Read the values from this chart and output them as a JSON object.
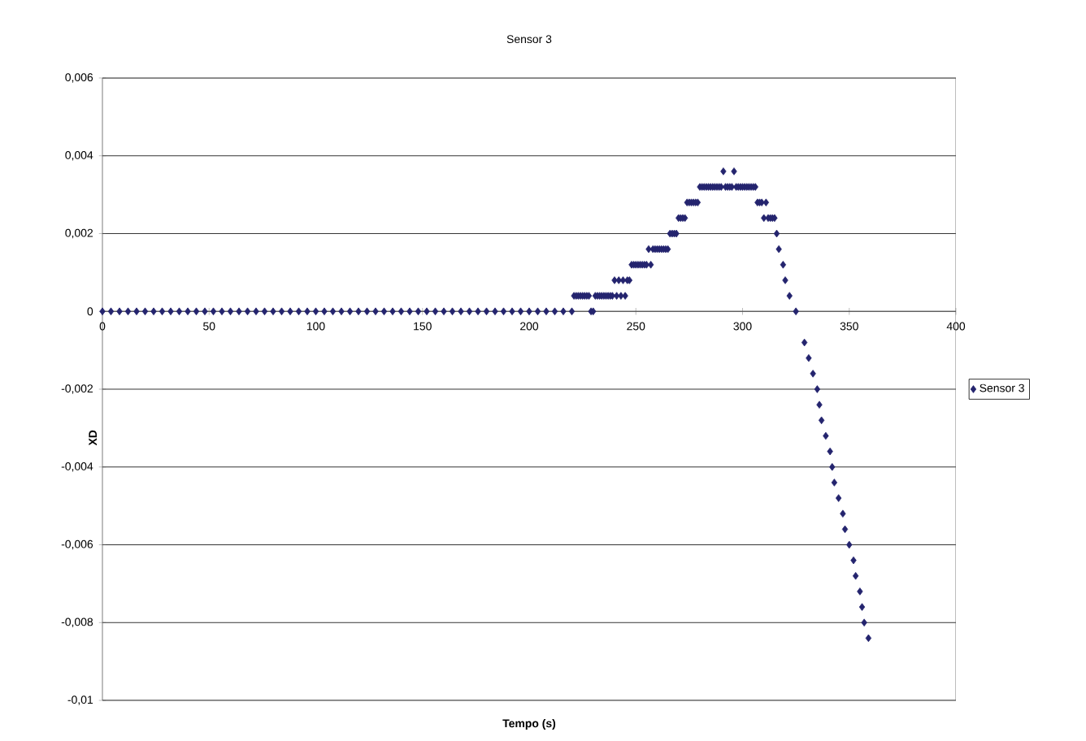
{
  "chart_data": {
    "type": "scatter",
    "title": "Sensor 3",
    "xlabel": "Tempo (s)",
    "ylabel": "XD",
    "xlim": [
      0,
      400
    ],
    "xticks": [
      0,
      50,
      100,
      150,
      200,
      250,
      300,
      350,
      400
    ],
    "ylim": [
      -0.01,
      0.006
    ],
    "yticks": [
      {
        "value": -0.01,
        "label": "-0,01"
      },
      {
        "value": -0.008,
        "label": "-0,008"
      },
      {
        "value": -0.006,
        "label": "-0,006"
      },
      {
        "value": -0.004,
        "label": "-0,004"
      },
      {
        "value": -0.002,
        "label": "-0,002"
      },
      0,
      {
        "value": 0.002,
        "label": "0,002"
      },
      {
        "value": 0.004,
        "label": "0,004"
      },
      {
        "value": 0.006,
        "label": "0,006"
      }
    ],
    "grid": "y",
    "legend": "right",
    "marker": "diamond",
    "series": [
      {
        "name": "Sensor 3",
        "color": "#24246e",
        "x": [
          0,
          4,
          8,
          12,
          16,
          20,
          24,
          28,
          32,
          36,
          40,
          44,
          48,
          52,
          56,
          60,
          64,
          68,
          72,
          76,
          80,
          84,
          88,
          92,
          96,
          100,
          104,
          108,
          112,
          116,
          120,
          124,
          128,
          132,
          136,
          140,
          144,
          148,
          152,
          156,
          160,
          164,
          168,
          172,
          176,
          180,
          184,
          188,
          192,
          196,
          200,
          204,
          208,
          212,
          216,
          220,
          221,
          222,
          223,
          224,
          225,
          226,
          227,
          228,
          229,
          230,
          231,
          232,
          233,
          234,
          235,
          236,
          237,
          238,
          239,
          240,
          241,
          242,
          243,
          244,
          245,
          246,
          247,
          248,
          249,
          250,
          251,
          252,
          253,
          254,
          255,
          256,
          257,
          258,
          259,
          260,
          261,
          262,
          263,
          264,
          265,
          266,
          267,
          268,
          269,
          270,
          271,
          272,
          273,
          274,
          275,
          276,
          277,
          278,
          279,
          280,
          281,
          282,
          283,
          284,
          285,
          286,
          287,
          288,
          289,
          290,
          291,
          292,
          293,
          294,
          295,
          296,
          297,
          298,
          299,
          300,
          301,
          302,
          303,
          304,
          305,
          306,
          307,
          308,
          309,
          310,
          311,
          312,
          313,
          314,
          315,
          316,
          317,
          319,
          320,
          322,
          325,
          329,
          331,
          333,
          335,
          336,
          337,
          339,
          341,
          342,
          343,
          345,
          347,
          348,
          350,
          352,
          353,
          355,
          356,
          357,
          359
        ],
        "values": [
          0,
          0,
          0,
          0,
          0,
          0,
          0,
          0,
          0,
          0,
          0,
          0,
          0,
          0,
          0,
          0,
          0,
          0,
          0,
          0,
          0,
          0,
          0,
          0,
          0,
          0,
          0,
          0,
          0,
          0,
          0,
          0,
          0,
          0,
          0,
          0,
          0,
          0,
          0,
          0,
          0,
          0,
          0,
          0,
          0,
          0,
          0,
          0,
          0,
          0,
          0,
          0,
          0,
          0,
          0,
          0,
          0.0004,
          0.0004,
          0.0004,
          0.0004,
          0.0004,
          0.0004,
          0.0004,
          0.0004,
          0,
          0,
          0.0004,
          0.0004,
          0.0004,
          0.0004,
          0.0004,
          0.0004,
          0.0004,
          0.0004,
          0.0004,
          0.0008,
          0.0004,
          0.0008,
          0.0004,
          0.0008,
          0.0004,
          0.0008,
          0.0008,
          0.0012,
          0.0012,
          0.0012,
          0.0012,
          0.0012,
          0.0012,
          0.0012,
          0.0012,
          0.0016,
          0.0012,
          0.0016,
          0.0016,
          0.0016,
          0.0016,
          0.0016,
          0.0016,
          0.0016,
          0.0016,
          0.002,
          0.002,
          0.002,
          0.002,
          0.0024,
          0.0024,
          0.0024,
          0.0024,
          0.0028,
          0.0028,
          0.0028,
          0.0028,
          0.0028,
          0.0028,
          0.0032,
          0.0032,
          0.0032,
          0.0032,
          0.0032,
          0.0032,
          0.0032,
          0.0032,
          0.0032,
          0.0032,
          0.0032,
          0.0036,
          0.0032,
          0.0032,
          0.0032,
          0.0032,
          0.0036,
          0.0032,
          0.0032,
          0.0032,
          0.0032,
          0.0032,
          0.0032,
          0.0032,
          0.0032,
          0.0032,
          0.0032,
          0.0028,
          0.0028,
          0.0028,
          0.0024,
          0.0028,
          0.0024,
          0.0024,
          0.0024,
          0.0024,
          0.002,
          0.0016,
          0.0012,
          0.0008,
          0.0004,
          0,
          -0.0008,
          -0.0012,
          -0.0016,
          -0.002,
          -0.0024,
          -0.0028,
          -0.0032,
          -0.0036,
          -0.004,
          -0.0044,
          -0.0048,
          -0.0052,
          -0.0056,
          -0.006,
          -0.0064,
          -0.0068,
          -0.0072,
          -0.0076,
          -0.008,
          -0.0084
        ]
      }
    ]
  }
}
